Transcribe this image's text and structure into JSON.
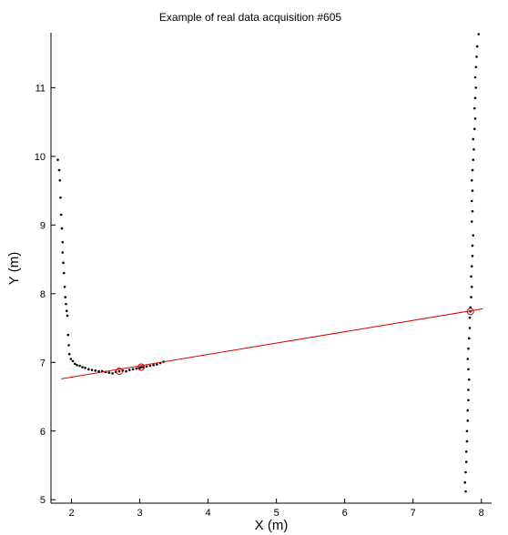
{
  "chart_data": {
    "type": "scatter",
    "title": "Example of real data acquisition #605",
    "xlabel": "X (m)",
    "ylabel": "Y (m)",
    "xlim": [
      1.7,
      8.15
    ],
    "ylim": [
      4.95,
      11.8
    ],
    "xticks": [
      2,
      3,
      4,
      5,
      6,
      7,
      8
    ],
    "yticks": [
      5,
      6,
      7,
      8,
      9,
      10,
      11
    ],
    "grid": false,
    "colors": {
      "points": "#000000",
      "line": "#e00000",
      "markers": "#cc0000",
      "axes": "#000000"
    },
    "series": [
      {
        "values": [
          [
            1.8,
            9.95
          ],
          [
            1.82,
            9.8
          ],
          [
            1.83,
            9.65
          ],
          [
            1.84,
            9.4
          ],
          [
            1.85,
            9.15
          ],
          [
            1.86,
            8.95
          ],
          [
            1.87,
            8.75
          ],
          [
            1.87,
            8.6
          ],
          [
            1.88,
            8.45
          ],
          [
            1.89,
            8.3
          ],
          [
            1.9,
            8.1
          ],
          [
            1.91,
            7.95
          ],
          [
            1.92,
            7.85
          ],
          [
            1.93,
            7.75
          ],
          [
            1.94,
            7.68
          ],
          [
            1.95,
            7.4
          ],
          [
            1.96,
            7.25
          ],
          [
            1.97,
            7.12
          ],
          [
            1.99,
            7.05
          ],
          [
            2.02,
            7.02
          ],
          [
            2.05,
            6.98
          ],
          [
            2.08,
            6.96
          ],
          [
            2.12,
            6.95
          ],
          [
            2.16,
            6.93
          ],
          [
            2.2,
            6.92
          ],
          [
            2.25,
            6.9
          ],
          [
            2.3,
            6.89
          ],
          [
            2.35,
            6.88
          ],
          [
            2.4,
            6.87
          ],
          [
            2.45,
            6.87
          ],
          [
            2.5,
            6.86
          ],
          [
            2.55,
            6.85
          ],
          [
            2.6,
            6.84
          ],
          [
            2.65,
            6.86
          ],
          [
            2.7,
            6.87
          ],
          [
            2.75,
            6.88
          ],
          [
            2.8,
            6.87
          ],
          [
            2.85,
            6.89
          ],
          [
            2.9,
            6.9
          ],
          [
            2.95,
            6.91
          ],
          [
            3.0,
            6.92
          ],
          [
            3.05,
            6.93
          ],
          [
            3.1,
            6.94
          ],
          [
            3.15,
            6.95
          ],
          [
            3.2,
            6.96
          ],
          [
            3.25,
            6.97
          ],
          [
            3.3,
            6.99
          ],
          [
            3.35,
            7.01
          ],
          [
            7.77,
            5.12
          ],
          [
            7.76,
            5.25
          ],
          [
            7.77,
            5.4
          ],
          [
            7.78,
            5.55
          ],
          [
            7.78,
            5.7
          ],
          [
            7.79,
            5.85
          ],
          [
            7.79,
            6.0
          ],
          [
            7.8,
            6.15
          ],
          [
            7.8,
            6.3
          ],
          [
            7.81,
            6.45
          ],
          [
            7.81,
            6.6
          ],
          [
            7.82,
            6.75
          ],
          [
            7.81,
            6.9
          ],
          [
            7.8,
            7.05
          ],
          [
            7.81,
            7.2
          ],
          [
            7.82,
            7.35
          ],
          [
            7.83,
            7.5
          ],
          [
            7.83,
            7.65
          ],
          [
            7.84,
            7.8
          ],
          [
            7.85,
            7.95
          ],
          [
            7.86,
            8.1
          ],
          [
            7.85,
            8.25
          ],
          [
            7.86,
            8.4
          ],
          [
            7.87,
            8.55
          ],
          [
            7.87,
            8.7
          ],
          [
            7.88,
            8.85
          ],
          [
            7.86,
            9.05
          ],
          [
            7.87,
            9.2
          ],
          [
            7.86,
            9.35
          ],
          [
            7.87,
            9.5
          ],
          [
            7.86,
            9.65
          ],
          [
            7.87,
            9.8
          ],
          [
            7.88,
            9.95
          ],
          [
            7.89,
            10.1
          ],
          [
            7.88,
            10.25
          ],
          [
            7.9,
            10.4
          ],
          [
            7.91,
            10.55
          ],
          [
            7.9,
            10.7
          ],
          [
            7.91,
            10.85
          ],
          [
            7.92,
            11.0
          ],
          [
            7.91,
            11.15
          ],
          [
            7.92,
            11.3
          ],
          [
            7.93,
            11.45
          ],
          [
            7.94,
            11.6
          ],
          [
            7.96,
            11.78
          ]
        ]
      }
    ],
    "fit_line": {
      "x": [
        1.85,
        8.02
      ],
      "y": [
        6.76,
        7.78
      ]
    },
    "highlighted_points": [
      [
        2.7,
        6.87
      ],
      [
        3.02,
        6.93
      ],
      [
        7.84,
        7.74
      ]
    ]
  }
}
